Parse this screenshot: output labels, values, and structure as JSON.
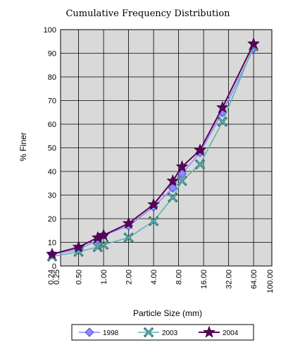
{
  "chart_data": {
    "type": "line",
    "title": "Cumulative Frequency Distribution",
    "xlabel": "Particle Size (mm)",
    "ylabel": "% Finer",
    "x_scale": "log2",
    "x_ticks": [
      "0.24",
      "0.25",
      "0.50",
      "1.00",
      "2.00",
      "4.00",
      "8.00",
      "16.00",
      "32.00",
      "64.00",
      "100.00"
    ],
    "y_ticks": [
      "0",
      "10",
      "20",
      "30",
      "40",
      "50",
      "60",
      "70",
      "80",
      "90",
      "100"
    ],
    "ylim": [
      0,
      100
    ],
    "grid": true,
    "legend_position": "bottom",
    "series": [
      {
        "name": "1998",
        "color": "#8c8cff",
        "marker": "diamond",
        "x": [
          0.24,
          0.5,
          0.85,
          1.0,
          2.0,
          4.0,
          6.8,
          8.8,
          14.5,
          27.0,
          64.0
        ],
        "y": [
          5,
          7,
          11,
          13,
          17,
          25,
          33,
          39,
          48,
          65,
          92
        ]
      },
      {
        "name": "2003",
        "color": "#5fb3b3",
        "marker": "x",
        "x": [
          0.24,
          0.5,
          0.85,
          1.0,
          2.0,
          4.0,
          6.8,
          8.8,
          14.5,
          27.0,
          64.0
        ],
        "y": [
          4,
          6,
          8,
          9,
          12,
          19,
          29,
          36,
          43,
          61,
          93
        ]
      },
      {
        "name": "2004",
        "color": "#5c005c",
        "marker": "star",
        "x": [
          0.24,
          0.5,
          0.85,
          1.0,
          2.0,
          4.0,
          6.8,
          8.8,
          14.5,
          27.0,
          64.0
        ],
        "y": [
          5,
          8,
          12,
          13,
          18,
          26,
          36,
          42,
          49,
          67,
          94
        ]
      }
    ]
  }
}
